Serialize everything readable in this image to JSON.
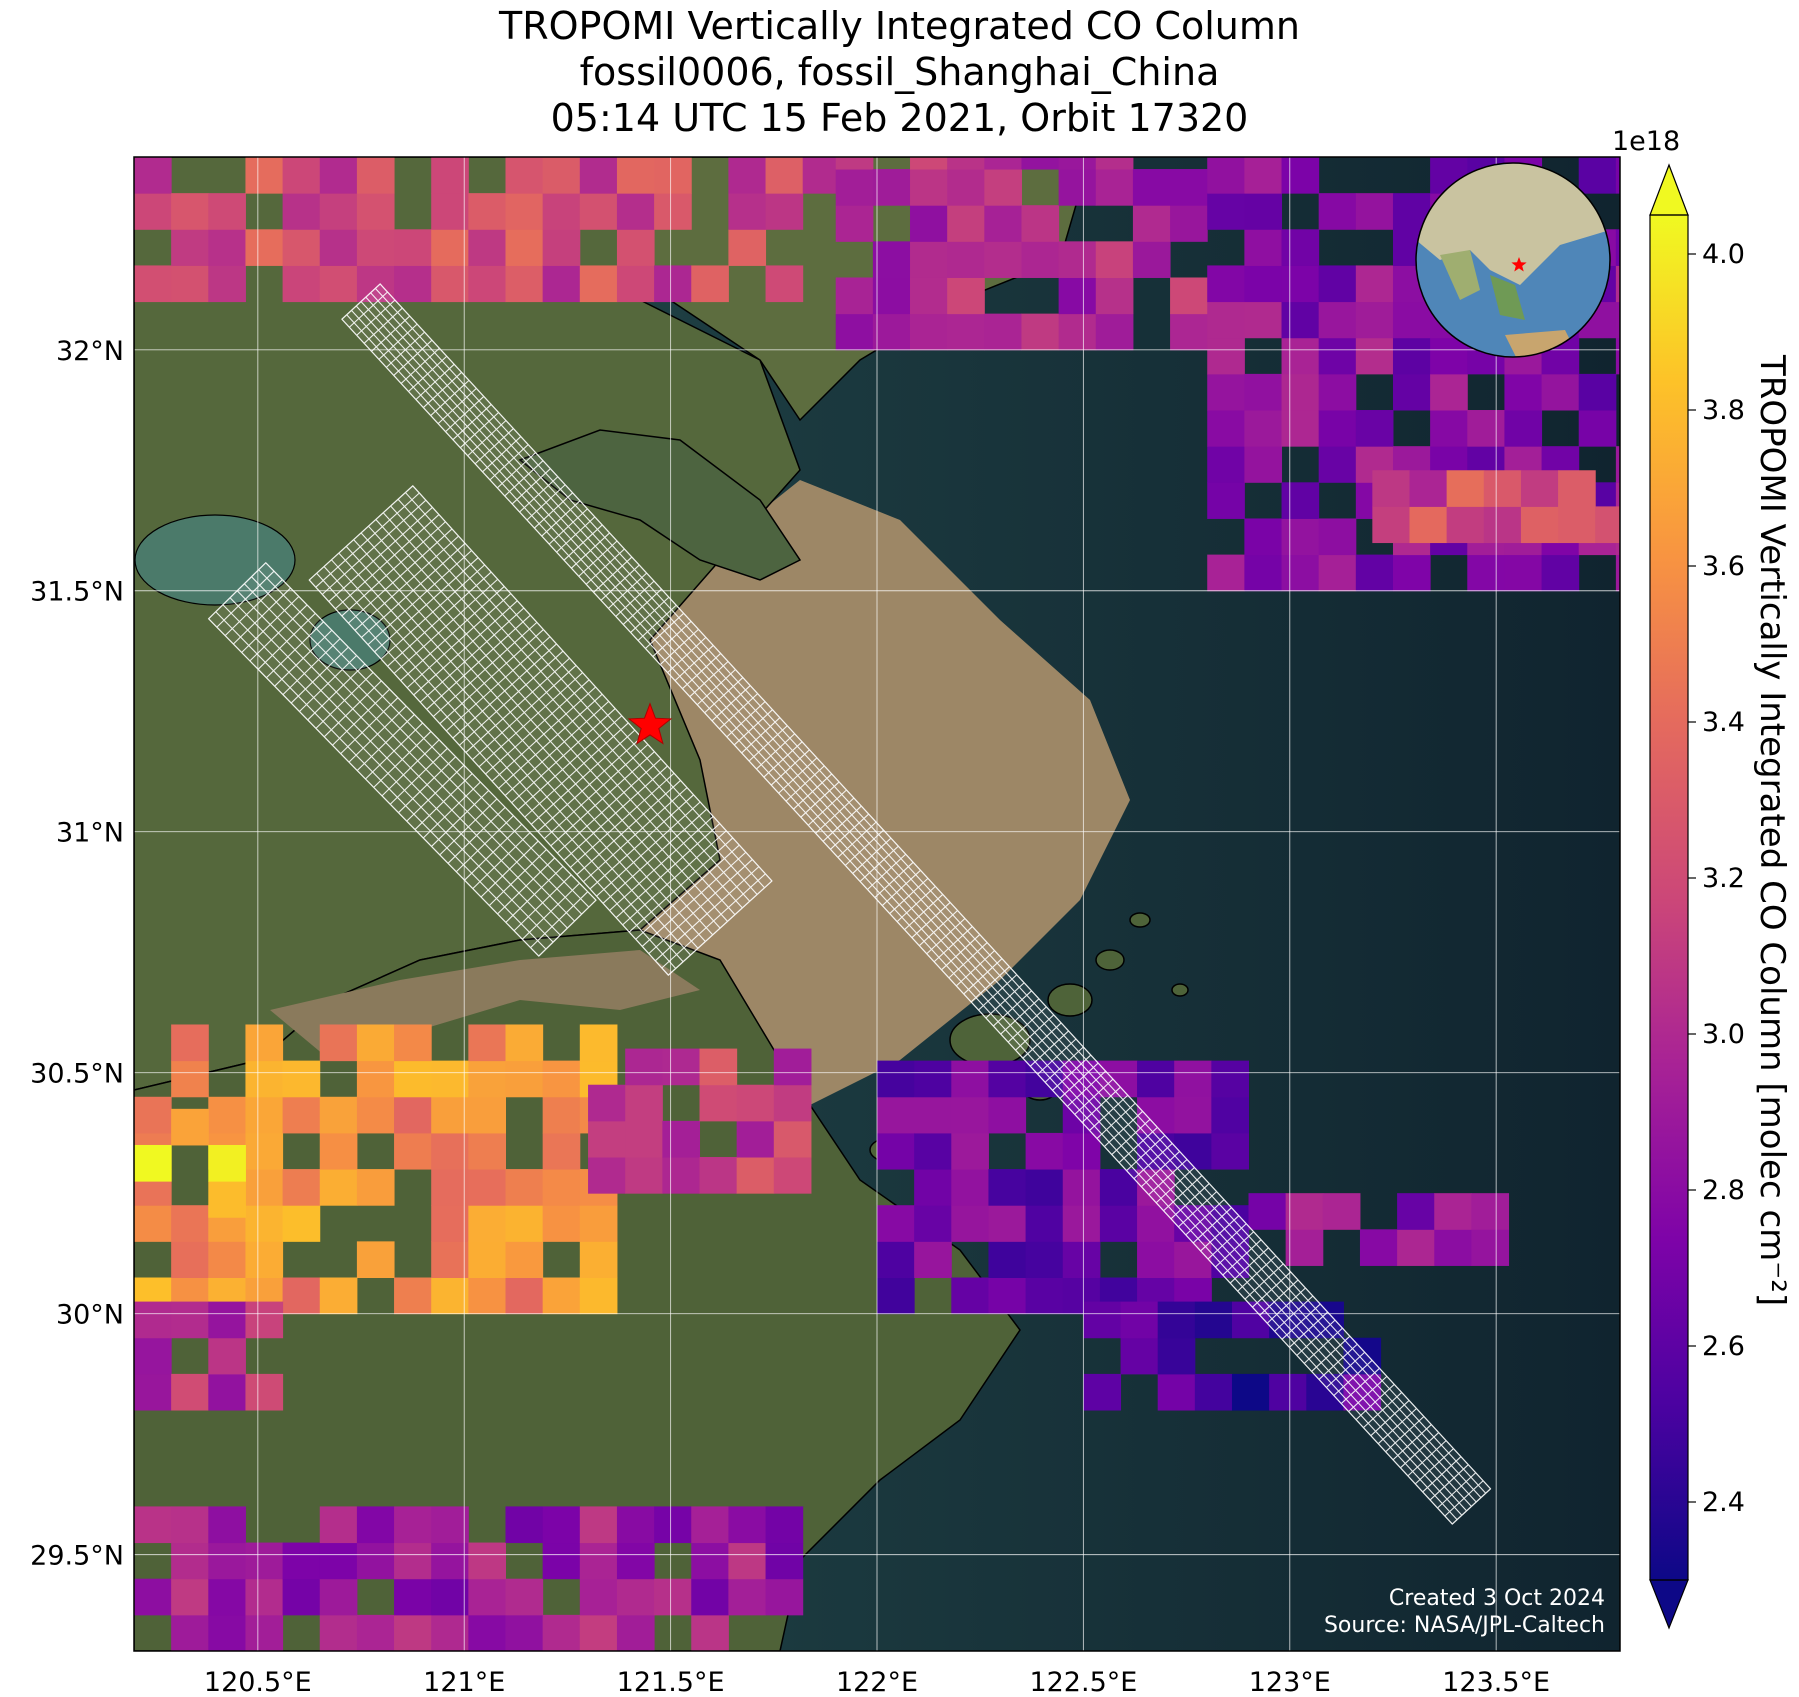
{
  "title": {
    "line1": "TROPOMI Vertically Integrated CO Column",
    "line2": "fossil0006, fossil_Shanghai_China",
    "line3": "05:14 UTC 15 Feb 2021, Orbit 17320"
  },
  "map": {
    "lon_range": [
      120.2,
      123.8
    ],
    "lat_range": [
      29.3,
      32.4
    ],
    "lon_ticks": [
      {
        "value": 120.5,
        "label": "120.5°E"
      },
      {
        "value": 121.0,
        "label": "121°E"
      },
      {
        "value": 121.5,
        "label": "121.5°E"
      },
      {
        "value": 122.0,
        "label": "122°E"
      },
      {
        "value": 122.5,
        "label": "122.5°E"
      },
      {
        "value": 123.0,
        "label": "123°E"
      },
      {
        "value": 123.5,
        "label": "123.5°E"
      }
    ],
    "lat_ticks": [
      {
        "value": 29.5,
        "label": "29.5°N"
      },
      {
        "value": 30.0,
        "label": "30°N"
      },
      {
        "value": 30.5,
        "label": "30.5°N"
      },
      {
        "value": 31.0,
        "label": "31°N"
      },
      {
        "value": 31.5,
        "label": "31.5°N"
      },
      {
        "value": 32.0,
        "label": "32°N"
      }
    ],
    "gridlines": true,
    "target": {
      "lon": 121.45,
      "lat": 31.22,
      "marker": "red-star"
    },
    "colors": {
      "land": "#5a6a3e",
      "estuary": "#a08a66",
      "ocean": "#10242f",
      "coast": "#000000",
      "grid": "#ffffff",
      "star": "#ff0000",
      "footprint": "#ffffff"
    }
  },
  "chart_data": {
    "type": "heatmap",
    "variable": "TROPOMI Vertically Integrated CO Column",
    "unit": "molec cm^-2",
    "color_scale": "plasma",
    "vmin": 2.3e+18,
    "vmax": 4.05e+18,
    "regions": [
      {
        "lon": [
          120.2,
          121.9
        ],
        "lat": [
          32.1,
          32.4
        ],
        "value": 3.2e+18
      },
      {
        "lon": [
          121.9,
          122.8
        ],
        "lat": [
          32.0,
          32.4
        ],
        "value": 3e+18
      },
      {
        "lon": [
          122.8,
          123.8
        ],
        "lat": [
          31.5,
          32.4
        ],
        "value": 2.8e+18
      },
      {
        "lon": [
          123.2,
          123.8
        ],
        "lat": [
          31.6,
          31.7
        ],
        "value": 3.2e+18
      },
      {
        "lon": [
          120.2,
          121.3
        ],
        "lat": [
          30.0,
          30.6
        ],
        "value": 3.6e+18
      },
      {
        "lon": [
          120.2,
          120.4
        ],
        "lat": [
          30.2,
          30.4
        ],
        "value": 3.9e+18
      },
      {
        "lon": [
          121.3,
          121.8
        ],
        "lat": [
          30.25,
          30.5
        ],
        "value": 3.1e+18
      },
      {
        "lon": [
          120.2,
          120.5
        ],
        "lat": [
          29.8,
          30.0
        ],
        "value": 3e+18
      },
      {
        "lon": [
          122.0,
          122.9
        ],
        "lat": [
          30.0,
          30.5
        ],
        "value": 2.7e+18
      },
      {
        "lon": [
          122.9,
          123.5
        ],
        "lat": [
          30.1,
          30.2
        ],
        "value": 2.8e+18
      },
      {
        "lon": [
          122.5,
          123.2
        ],
        "lat": [
          29.8,
          30.0
        ],
        "value": 2.5e+18
      },
      {
        "lon": [
          120.2,
          121.8
        ],
        "lat": [
          29.3,
          29.6
        ],
        "value": 2.9e+18
      }
    ],
    "colorbar": {
      "ticks": [
        2.4,
        2.6,
        2.8,
        3.0,
        3.2,
        3.4,
        3.6,
        3.8,
        4.0
      ],
      "tick_labels": [
        "2.4",
        "2.6",
        "2.8",
        "3.0",
        "3.2",
        "3.4",
        "3.6",
        "3.8",
        "4.0"
      ],
      "multiplier": "1e18",
      "label": "TROPOMI Vertically Integrated CO Column [molec cm⁻²]",
      "extend": "both"
    }
  },
  "credits": {
    "created": "Created 3 Oct 2024",
    "source": "Source: NASA/JPL-Caltech"
  },
  "inset": {
    "type": "globe",
    "marker": "red-star"
  }
}
